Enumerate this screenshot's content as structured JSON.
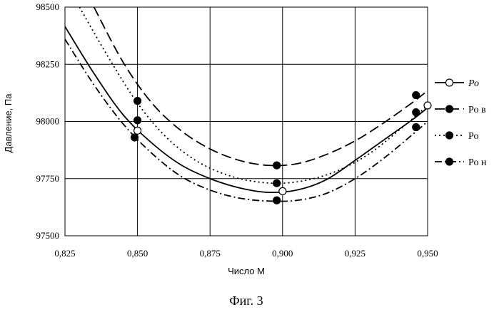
{
  "figure_caption": "Фиг. 3",
  "chart_data": {
    "type": "line",
    "title": "",
    "xlabel": "Число М",
    "ylabel": "Давление, Па",
    "xlim": [
      0.825,
      0.95
    ],
    "ylim": [
      97500,
      98500
    ],
    "x_ticks": [
      "0,825",
      "0,850",
      "0,875",
      "0,900",
      "0,925",
      "0,950"
    ],
    "y_ticks": [
      "97500",
      "97750",
      "98000",
      "98250",
      "98500"
    ],
    "grid": true,
    "legend_position": "right",
    "series": [
      {
        "name": "Ро",
        "line_style": "solid",
        "marker": "open-circle",
        "curve": [
          [
            0.825,
            98415
          ],
          [
            0.835,
            98210
          ],
          [
            0.845,
            98030
          ],
          [
            0.855,
            97905
          ],
          [
            0.865,
            97810
          ],
          [
            0.875,
            97750
          ],
          [
            0.885,
            97710
          ],
          [
            0.895,
            97690
          ],
          [
            0.905,
            97700
          ],
          [
            0.915,
            97745
          ],
          [
            0.925,
            97830
          ],
          [
            0.935,
            97920
          ],
          [
            0.945,
            98010
          ],
          [
            0.95,
            98060
          ]
        ],
        "points": [
          [
            0.85,
            97960
          ],
          [
            0.9,
            97695
          ],
          [
            0.95,
            98070
          ]
        ]
      },
      {
        "name": "Ро в",
        "line_style": "long-dash",
        "marker": "filled-circle",
        "curve": [
          [
            0.835,
            98500
          ],
          [
            0.845,
            98260
          ],
          [
            0.855,
            98080
          ],
          [
            0.865,
            97960
          ],
          [
            0.875,
            97880
          ],
          [
            0.885,
            97830
          ],
          [
            0.895,
            97808
          ],
          [
            0.905,
            97815
          ],
          [
            0.915,
            97855
          ],
          [
            0.925,
            97915
          ],
          [
            0.935,
            97995
          ],
          [
            0.945,
            98085
          ],
          [
            0.95,
            98135
          ]
        ],
        "points": [
          [
            0.85,
            98090
          ],
          [
            0.898,
            97808
          ],
          [
            0.946,
            98115
          ]
        ]
      },
      {
        "name": "Ро",
        "line_style": "dotted",
        "marker": "filled-circle",
        "curve": [
          [
            0.83,
            98500
          ],
          [
            0.84,
            98280
          ],
          [
            0.85,
            98080
          ],
          [
            0.86,
            97930
          ],
          [
            0.87,
            97830
          ],
          [
            0.88,
            97770
          ],
          [
            0.89,
            97738
          ],
          [
            0.9,
            97730
          ],
          [
            0.91,
            97748
          ],
          [
            0.92,
            97790
          ],
          [
            0.93,
            97860
          ],
          [
            0.94,
            97960
          ],
          [
            0.95,
            98070
          ]
        ],
        "points": [
          [
            0.85,
            98005
          ],
          [
            0.898,
            97730
          ],
          [
            0.946,
            98040
          ]
        ]
      },
      {
        "name": "Ро н",
        "line_style": "dash-dot",
        "marker": "filled-circle",
        "curve": [
          [
            0.825,
            98360
          ],
          [
            0.835,
            98160
          ],
          [
            0.845,
            97990
          ],
          [
            0.855,
            97860
          ],
          [
            0.865,
            97760
          ],
          [
            0.875,
            97700
          ],
          [
            0.885,
            97665
          ],
          [
            0.895,
            97652
          ],
          [
            0.905,
            97655
          ],
          [
            0.915,
            97685
          ],
          [
            0.925,
            97750
          ],
          [
            0.935,
            97840
          ],
          [
            0.945,
            97945
          ],
          [
            0.95,
            98000
          ]
        ],
        "points": [
          [
            0.849,
            97930
          ],
          [
            0.898,
            97655
          ],
          [
            0.946,
            97975
          ]
        ]
      }
    ]
  }
}
